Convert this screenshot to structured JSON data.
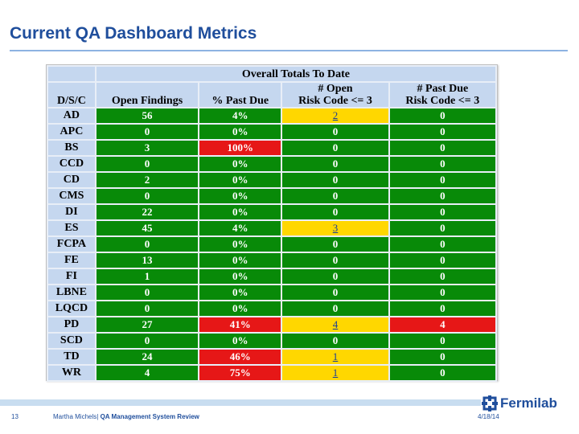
{
  "slide": {
    "title": "Current QA Dashboard Metrics",
    "footer": {
      "page_number": "13",
      "author": "Martha Michels|",
      "presentation": "QA Management System Review",
      "date": "4/18/14",
      "logo_text": "Fermilab"
    }
  },
  "table": {
    "group_header": "Overall Totals To Date",
    "headers": {
      "dsc": "D/S/C",
      "open_findings": "Open Findings",
      "pct_past_due": "% Past Due",
      "open_risk_line1": "# Open",
      "open_risk_line2": "Risk Code <= 3",
      "past_due_risk_line1": "# Past Due",
      "past_due_risk_line2": "Risk Code <= 3"
    },
    "rows": [
      {
        "dsc": "AD",
        "open": "56",
        "pct": "4%",
        "open_risk": "2",
        "past_due_risk": "0"
      },
      {
        "dsc": "APC",
        "open": "0",
        "pct": "0%",
        "open_risk": "0",
        "past_due_risk": "0"
      },
      {
        "dsc": "BS",
        "open": "3",
        "pct": "100%",
        "open_risk": "0",
        "past_due_risk": "0"
      },
      {
        "dsc": "CCD",
        "open": "0",
        "pct": "0%",
        "open_risk": "0",
        "past_due_risk": "0"
      },
      {
        "dsc": "CD",
        "open": "2",
        "pct": "0%",
        "open_risk": "0",
        "past_due_risk": "0"
      },
      {
        "dsc": "CMS",
        "open": "0",
        "pct": "0%",
        "open_risk": "0",
        "past_due_risk": "0"
      },
      {
        "dsc": "DI",
        "open": "22",
        "pct": "0%",
        "open_risk": "0",
        "past_due_risk": "0"
      },
      {
        "dsc": "ES",
        "open": "45",
        "pct": "4%",
        "open_risk": "3",
        "past_due_risk": "0"
      },
      {
        "dsc": "FCPA",
        "open": "0",
        "pct": "0%",
        "open_risk": "0",
        "past_due_risk": "0"
      },
      {
        "dsc": "FE",
        "open": "13",
        "pct": "0%",
        "open_risk": "0",
        "past_due_risk": "0"
      },
      {
        "dsc": "FI",
        "open": "1",
        "pct": "0%",
        "open_risk": "0",
        "past_due_risk": "0"
      },
      {
        "dsc": "LBNE",
        "open": "0",
        "pct": "0%",
        "open_risk": "0",
        "past_due_risk": "0"
      },
      {
        "dsc": "LQCD",
        "open": "0",
        "pct": "0%",
        "open_risk": "0",
        "past_due_risk": "0"
      },
      {
        "dsc": "PD",
        "open": "27",
        "pct": "41%",
        "open_risk": "4",
        "past_due_risk": "4"
      },
      {
        "dsc": "SCD",
        "open": "0",
        "pct": "0%",
        "open_risk": "0",
        "past_due_risk": "0"
      },
      {
        "dsc": "TD",
        "open": "24",
        "pct": "46%",
        "open_risk": "1",
        "past_due_risk": "0"
      },
      {
        "dsc": "WR",
        "open": "4",
        "pct": "75%",
        "open_risk": "1",
        "past_due_risk": "0"
      }
    ]
  },
  "colors": {
    "green": "#088a08",
    "red": "#e61717",
    "yellow": "#ffd700",
    "header_blue": "#c5d7ef",
    "title_blue": "#1f4e9c"
  }
}
